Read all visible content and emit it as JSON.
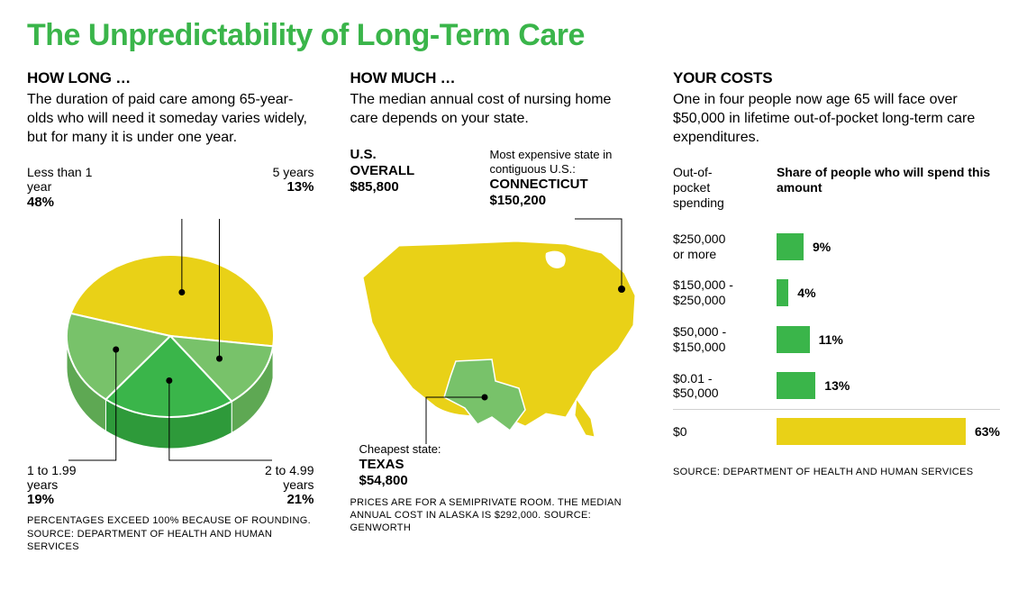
{
  "title": "The Unpredictability of Long-Term Care",
  "title_color": "#3ab54a",
  "title_fontsize": 34,
  "colors": {
    "yellow": "#e9d117",
    "green_mid": "#78c26a",
    "green_dark": "#3ab54a",
    "yellow_side": "#caad0f",
    "green_mid_side": "#5ea853",
    "green_dark_side": "#2e9a3a",
    "gray_line": "#d0d0d0",
    "text": "#000000"
  },
  "pie": {
    "heading": "HOW LONG …",
    "sub": "The duration of paid care among 65-year-olds who will need it someday varies widely, but for many it is  under one year.",
    "slices": [
      {
        "label": "Less than 1\nyear",
        "pct": 48,
        "color": "#e9d117",
        "side_color": "#caad0f"
      },
      {
        "label": "5 years",
        "pct": 13,
        "color": "#78c26a",
        "side_color": "#5ea853"
      },
      {
        "label": "2 to 4.99\nyears",
        "pct": 21,
        "color": "#3ab54a",
        "side_color": "#2e9a3a"
      },
      {
        "label": "1 to 1.99\nyears",
        "pct": 19,
        "color": "#78c26a",
        "side_color": "#5ea853"
      }
    ],
    "footnote": "PERCENTAGES EXCEED 100% BECAUSE OF ROUNDING. SOURCE: DEPARTMENT OF HEALTH AND HUMAN SERVICES"
  },
  "map": {
    "heading": "HOW MUCH …",
    "sub": "The median annual cost of nursing home care depends on your state.",
    "overall_label": "U.S.\nOVERALL",
    "overall_value": "$85,800",
    "expensive_intro": "Most expensive state in contiguous U.S.:",
    "expensive_state": "CONNECTICUT",
    "expensive_value": "$150,200",
    "cheap_intro": "Cheapest state:",
    "cheap_state": "TEXAS",
    "cheap_value": "$54,800",
    "map_main_color": "#e9d117",
    "map_highlight_color": "#78c26a",
    "footnote": "PRICES ARE FOR A SEMIPRIVATE ROOM. THE MEDIAN ANNUAL COST IN ALASKA IS $292,000. SOURCE: GENWORTH"
  },
  "bars": {
    "heading": "YOUR COSTS",
    "sub": "One in four people now age 65 will face over $50,000 in lifetime out-of-pocket long-term care expenditures.",
    "col_left": "Out-of-\npocket\nspending",
    "col_right": "Share of people who will spend this amount",
    "max_pct": 63,
    "rows": [
      {
        "range": "$250,000\nor more",
        "pct": 9,
        "color": "#3ab54a"
      },
      {
        "range": "$150,000 -\n$250,000",
        "pct": 4,
        "color": "#3ab54a"
      },
      {
        "range": "$50,000 -\n$150,000",
        "pct": 11,
        "color": "#3ab54a"
      },
      {
        "range": "$0.01 -\n$50,000",
        "pct": 13,
        "color": "#3ab54a"
      },
      {
        "range": "$0",
        "pct": 63,
        "color": "#e9d117"
      }
    ],
    "footnote": "SOURCE: DEPARTMENT OF HEALTH AND HUMAN SERVICES"
  }
}
